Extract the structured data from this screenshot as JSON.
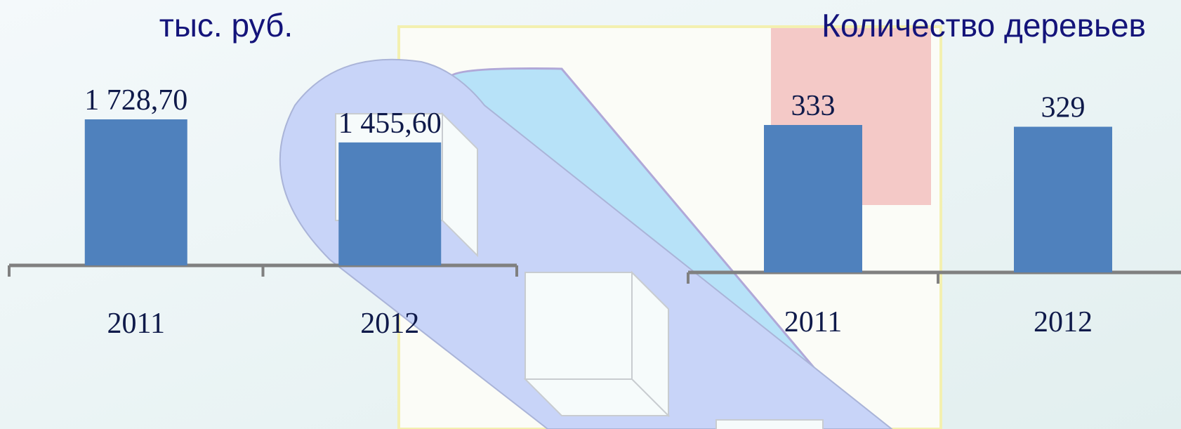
{
  "chart_data": [
    {
      "type": "bar",
      "title": "тыс. руб.",
      "categories": [
        "2011",
        "2012"
      ],
      "values": [
        1728.7,
        1455.6
      ],
      "value_labels": [
        "1 728,70",
        "1 455,60"
      ],
      "color": "#4f81bd"
    },
    {
      "type": "bar",
      "title": "Количество деревьев",
      "categories": [
        "2011",
        "2012"
      ],
      "values": [
        333,
        329
      ],
      "color": "#4f81bd"
    }
  ]
}
